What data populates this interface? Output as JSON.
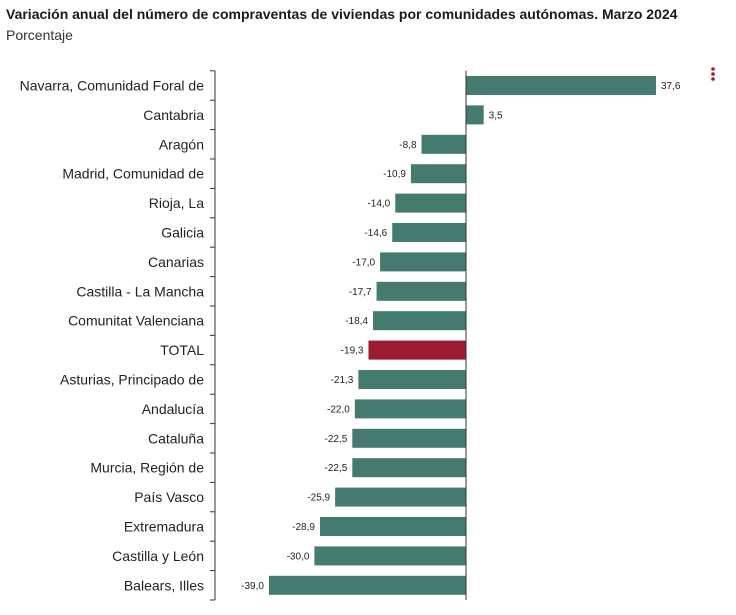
{
  "title": "Variación anual del número de compraventas de viviendas por comunidades autónomas. Marzo 2024",
  "subtitle": "Porcentaje",
  "menu_icon": "kebab-menu-icon",
  "colors": {
    "bar": "#457b6f",
    "highlight": "#9b1b30",
    "axis": "#333333"
  },
  "chart_data": {
    "type": "bar",
    "orientation": "horizontal",
    "title": "Variación anual del número de compraventas de viviendas por comunidades autónomas. Marzo 2024",
    "subtitle": "Porcentaje",
    "xlim": [
      -39,
      37.6
    ],
    "grid": false,
    "highlight": "TOTAL",
    "categories": [
      "Navarra, Comunidad Foral de",
      "Cantabria",
      "Aragón",
      "Madrid, Comunidad de",
      "Rioja, La",
      "Galicia",
      "Canarias",
      "Castilla - La Mancha",
      "Comunitat Valenciana",
      "TOTAL",
      "Asturias, Principado de",
      "Andalucía",
      "Cataluña",
      "Murcia, Región de",
      "País Vasco",
      "Extremadura",
      "Castilla y León",
      "Balears, Illes"
    ],
    "values": [
      37.6,
      3.5,
      -8.8,
      -10.9,
      -14.0,
      -14.6,
      -17.0,
      -17.7,
      -18.4,
      -19.3,
      -21.3,
      -22.0,
      -22.5,
      -22.5,
      -25.9,
      -28.9,
      -30.0,
      -39.0
    ],
    "value_labels": [
      "37,6",
      "3,5",
      "-8,8",
      "-10,9",
      "-14,0",
      "-14,6",
      "-17,0",
      "-17,7",
      "-18,4",
      "-19,3",
      "-21,3",
      "-22,0",
      "-22,5",
      "-22,5",
      "-25,9",
      "-28,9",
      "-30,0",
      "-39,0"
    ]
  }
}
